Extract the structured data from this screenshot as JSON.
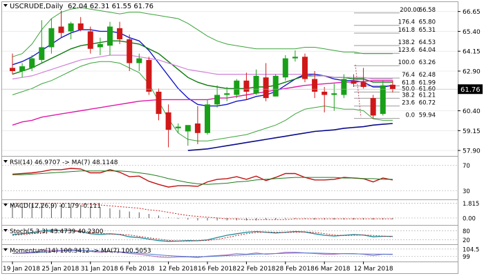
{
  "chart_data": {
    "type": "candlestick",
    "symbol_label": "USCRUDE,Daily",
    "ohlc_label": "62.04 62.31 61.55 61.76",
    "last_price": 61.76,
    "last_price_label": "61.76",
    "ylim": [
      57.6,
      67.2
    ],
    "y_ticks": [
      {
        "v": 66.65,
        "label": "66.65"
      },
      {
        "v": 65.4,
        "label": "65.40"
      },
      {
        "v": 64.15,
        "label": "64.15"
      },
      {
        "v": 62.9,
        "label": "62.90"
      },
      {
        "v": 60.4,
        "label": "60.40"
      },
      {
        "v": 59.15,
        "label": "59.15"
      },
      {
        "v": 57.9,
        "label": "57.90"
      }
    ],
    "x_labels": [
      {
        "i": 0,
        "label": "19 Jan 2018"
      },
      {
        "i": 4,
        "label": "25 Jan 2018"
      },
      {
        "i": 8,
        "label": "31 Jan 2018"
      },
      {
        "i": 12,
        "label": "6 Feb 2018"
      },
      {
        "i": 16,
        "label": "12 Feb 2018"
      },
      {
        "i": 20,
        "label": "16 Feb 2018"
      },
      {
        "i": 24,
        "label": "22 Feb 2018"
      },
      {
        "i": 28,
        "label": "28 Feb 2018"
      },
      {
        "i": 32,
        "label": "6 Mar 2018"
      },
      {
        "i": 36,
        "label": "12 Mar 2018"
      }
    ],
    "candles": [
      {
        "o": 63.1,
        "h": 64.0,
        "l": 62.7,
        "c": 62.9
      },
      {
        "o": 62.9,
        "h": 63.4,
        "l": 62.5,
        "c": 63.2
      },
      {
        "o": 63.1,
        "h": 63.9,
        "l": 62.9,
        "c": 63.7
      },
      {
        "o": 63.6,
        "h": 66.1,
        "l": 63.4,
        "c": 64.4
      },
      {
        "o": 64.4,
        "h": 66.2,
        "l": 64.0,
        "c": 65.6
      },
      {
        "o": 65.7,
        "h": 66.7,
        "l": 65.0,
        "c": 65.3
      },
      {
        "o": 65.4,
        "h": 66.0,
        "l": 64.9,
        "c": 65.9
      },
      {
        "o": 65.9,
        "h": 66.3,
        "l": 65.4,
        "c": 65.5
      },
      {
        "o": 65.4,
        "h": 65.7,
        "l": 64.0,
        "c": 64.3
      },
      {
        "o": 64.4,
        "h": 65.0,
        "l": 63.9,
        "c": 64.6
      },
      {
        "o": 64.5,
        "h": 66.0,
        "l": 63.9,
        "c": 65.7
      },
      {
        "o": 65.6,
        "h": 66.0,
        "l": 64.6,
        "c": 64.9
      },
      {
        "o": 64.9,
        "h": 65.2,
        "l": 62.9,
        "c": 63.4
      },
      {
        "o": 63.4,
        "h": 64.0,
        "l": 62.9,
        "c": 63.7
      },
      {
        "o": 63.6,
        "h": 63.8,
        "l": 61.4,
        "c": 61.6
      },
      {
        "o": 61.6,
        "h": 61.8,
        "l": 59.8,
        "c": 60.2
      },
      {
        "o": 60.3,
        "h": 60.8,
        "l": 58.1,
        "c": 59.2
      },
      {
        "o": 59.3,
        "h": 59.6,
        "l": 59.0,
        "c": 59.4
      },
      {
        "o": 59.1,
        "h": 59.5,
        "l": 58.2,
        "c": 59.5
      },
      {
        "o": 59.6,
        "h": 60.7,
        "l": 58.3,
        "c": 59.0
      },
      {
        "o": 59.0,
        "h": 61.1,
        "l": 58.9,
        "c": 60.8
      },
      {
        "o": 60.8,
        "h": 62.0,
        "l": 60.6,
        "c": 61.4
      },
      {
        "o": 61.4,
        "h": 61.9,
        "l": 61.0,
        "c": 61.5
      },
      {
        "o": 61.4,
        "h": 62.4,
        "l": 61.2,
        "c": 62.3
      },
      {
        "o": 62.3,
        "h": 62.8,
        "l": 61.1,
        "c": 61.6
      },
      {
        "o": 61.5,
        "h": 63.0,
        "l": 61.4,
        "c": 62.6
      },
      {
        "o": 62.5,
        "h": 63.4,
        "l": 61.0,
        "c": 61.2
      },
      {
        "o": 61.3,
        "h": 62.7,
        "l": 61.3,
        "c": 62.6
      },
      {
        "o": 62.5,
        "h": 63.9,
        "l": 62.3,
        "c": 63.7
      },
      {
        "o": 63.7,
        "h": 64.2,
        "l": 63.5,
        "c": 63.8
      },
      {
        "o": 63.8,
        "h": 64.0,
        "l": 62.2,
        "c": 62.4
      },
      {
        "o": 62.4,
        "h": 62.9,
        "l": 61.2,
        "c": 61.6
      },
      {
        "o": 61.6,
        "h": 61.9,
        "l": 60.3,
        "c": 61.4
      },
      {
        "o": 61.4,
        "h": 62.1,
        "l": 60.4,
        "c": 61.5
      },
      {
        "o": 61.4,
        "h": 62.7,
        "l": 61.2,
        "c": 62.4
      },
      {
        "o": 62.3,
        "h": 62.7,
        "l": 61.9,
        "c": 62.1
      },
      {
        "o": 62.2,
        "h": 63.1,
        "l": 61.8,
        "c": 61.9
      },
      {
        "o": 61.2,
        "h": 61.4,
        "l": 59.9,
        "c": 60.1
      },
      {
        "o": 60.2,
        "h": 62.3,
        "l": 60.1,
        "c": 62.0
      },
      {
        "o": 62.04,
        "h": 62.31,
        "l": 61.55,
        "c": 61.76
      }
    ],
    "fibonacci": [
      {
        "ratio": "200.00",
        "value": "66.58",
        "v": 66.58
      },
      {
        "ratio": "176.4",
        "value": "65.80",
        "v": 65.8
      },
      {
        "ratio": "161.8",
        "value": "65.31",
        "v": 65.31
      },
      {
        "ratio": "138.2",
        "value": "64.53",
        "v": 64.53
      },
      {
        "ratio": "123.6",
        "value": "64.04",
        "v": 64.04
      },
      {
        "ratio": "100.0",
        "value": "63.26",
        "v": 63.26
      },
      {
        "ratio": "76.4",
        "value": "62.48",
        "v": 62.48
      },
      {
        "ratio": "61.8",
        "value": "61.99",
        "v": 61.99
      },
      {
        "ratio": "50.0",
        "value": "61.60",
        "v": 61.6
      },
      {
        "ratio": "38.2",
        "value": "61.21",
        "v": 61.21
      },
      {
        "ratio": "23.6",
        "value": "60.72",
        "v": 60.72
      },
      {
        "ratio": "0.0",
        "value": "59.94",
        "v": 59.94
      }
    ],
    "overlays": [
      {
        "color": "#1414c8",
        "width": 1.4,
        "values": [
          63.3,
          63.5,
          63.8,
          64.2,
          64.6,
          65.0,
          65.3,
          65.5,
          65.5,
          65.4,
          65.4,
          65.3,
          65.0,
          64.8,
          64.2,
          63.4,
          62.6,
          61.8,
          61.2,
          60.8,
          60.7,
          60.7,
          60.8,
          61.0,
          61.1,
          61.3,
          61.4,
          61.6,
          62.0,
          62.4,
          62.7,
          62.7,
          62.6,
          62.4,
          62.3,
          62.3,
          62.2,
          61.9,
          61.9,
          62.0
        ]
      },
      {
        "color": "#0a7a0a",
        "width": 1.4,
        "values": [
          62.7,
          62.9,
          63.1,
          63.4,
          63.7,
          64.0,
          64.3,
          64.5,
          64.6,
          64.7,
          64.8,
          64.8,
          64.7,
          64.6,
          64.3,
          64.0,
          63.5,
          63.0,
          62.5,
          62.2,
          62.0,
          61.9,
          61.8,
          61.8,
          61.8,
          61.9,
          61.9,
          62.0,
          62.2,
          62.4,
          62.6,
          62.6,
          62.6,
          62.5,
          62.5,
          62.4,
          62.4,
          62.2,
          62.2,
          62.2
        ]
      },
      {
        "color": "#d080d8",
        "width": 1.2,
        "values": [
          62.4,
          62.5,
          62.6,
          62.8,
          63.0,
          63.2,
          63.4,
          63.6,
          63.7,
          63.8,
          63.9,
          63.9,
          63.9,
          63.8,
          63.7,
          63.6,
          63.4,
          63.2,
          63.0,
          62.9,
          62.8,
          62.7,
          62.7,
          62.7,
          62.7,
          62.7,
          62.7,
          62.7,
          62.7,
          62.7,
          62.7,
          62.6,
          62.6,
          62.5,
          62.5,
          62.5,
          62.5,
          62.4,
          62.4,
          62.4
        ]
      },
      {
        "color": "#e018a8",
        "width": 1.4,
        "values": [
          59.5,
          59.7,
          59.8,
          60.0,
          60.1,
          60.2,
          60.3,
          60.4,
          60.5,
          60.6,
          60.7,
          60.8,
          60.9,
          61.0,
          61.05,
          61.1,
          61.1,
          61.1,
          61.1,
          61.1,
          61.1,
          61.2,
          61.2,
          61.3,
          61.4,
          61.5,
          61.6,
          61.7,
          61.8,
          61.9,
          62.0,
          62.05,
          62.1,
          62.15,
          62.2,
          62.2,
          62.25,
          62.3,
          62.3,
          62.3
        ]
      },
      {
        "color": "#0a0a8c",
        "width": 1.6,
        "values": [
          null,
          null,
          null,
          null,
          null,
          null,
          null,
          null,
          null,
          null,
          null,
          null,
          null,
          null,
          null,
          null,
          null,
          null,
          57.9,
          57.95,
          58.0,
          58.1,
          58.2,
          58.3,
          58.4,
          58.5,
          58.6,
          58.7,
          58.8,
          58.9,
          59.0,
          59.1,
          59.15,
          59.2,
          59.3,
          59.35,
          59.4,
          59.5,
          59.55,
          59.6
        ]
      },
      {
        "color": "#3aa33a",
        "width": 1.0,
        "values": [
          63.8,
          64.0,
          64.6,
          65.5,
          66.2,
          66.6,
          66.8,
          66.9,
          66.8,
          66.7,
          66.6,
          66.5,
          66.6,
          66.6,
          66.5,
          66.4,
          66.3,
          66.2,
          65.9,
          65.5,
          65.1,
          64.8,
          64.6,
          64.5,
          64.4,
          64.3,
          64.3,
          64.3,
          64.3,
          64.3,
          64.4,
          64.4,
          64.3,
          64.2,
          64.1,
          64.1,
          64.0,
          64.0,
          64.0,
          64.0
        ]
      },
      {
        "color": "#3aa33a",
        "width": 1.0,
        "values": [
          61.4,
          61.6,
          61.8,
          62.1,
          62.3,
          62.6,
          62.9,
          63.2,
          63.4,
          63.5,
          63.5,
          63.4,
          63.1,
          62.8,
          62.1,
          61.0,
          59.9,
          59.0,
          58.6,
          58.5,
          58.5,
          58.6,
          58.7,
          58.8,
          58.9,
          59.1,
          59.3,
          59.5,
          59.8,
          60.2,
          60.5,
          60.6,
          60.7,
          60.6,
          60.5,
          60.5,
          60.4,
          59.9,
          59.8,
          59.8
        ]
      }
    ],
    "rsi": {
      "label": "RSI(14) 46.9707 -> MA(7) 48.1148",
      "ylim": [
        20,
        80
      ],
      "ticks": [
        {
          "v": 70,
          "label": "70"
        },
        {
          "v": 30,
          "label": "30"
        }
      ],
      "rsi": [
        56,
        57,
        58,
        60,
        63,
        63,
        65,
        64,
        58,
        58,
        63,
        59,
        52,
        53,
        45,
        40,
        36,
        38,
        38,
        37,
        44,
        48,
        49,
        52,
        48,
        53,
        46,
        51,
        57,
        57,
        51,
        47,
        47,
        48,
        51,
        50,
        49,
        44,
        50,
        47
      ],
      "ma": [
        55,
        55,
        56,
        57,
        58,
        59,
        60,
        61,
        61,
        61,
        61,
        61,
        60,
        58,
        56,
        53,
        49,
        46,
        43,
        41,
        40,
        41,
        42,
        44,
        45,
        47,
        48,
        49,
        50,
        51,
        51,
        51,
        51,
        51,
        50,
        50,
        49,
        49,
        48,
        48
      ]
    },
    "macd": {
      "label": "MACD(12,26,9) -0.179 -0.111",
      "ticks": [
        {
          "v": 1.815,
          "label": "1.815"
        },
        {
          "v": 0.0,
          "label": "0.00"
        }
      ],
      "ylim": [
        -0.6,
        1.95
      ],
      "hist": [
        1.7,
        1.7,
        1.7,
        1.8,
        1.8,
        1.7,
        1.7,
        1.6,
        1.4,
        1.3,
        1.2,
        1.0,
        0.8,
        0.7,
        0.5,
        0.3,
        0.1,
        -0.1,
        -0.2,
        -0.3,
        -0.3,
        -0.3,
        -0.3,
        -0.3,
        -0.3,
        -0.3,
        -0.2,
        -0.2,
        -0.1,
        -0.1,
        -0.1,
        -0.2,
        -0.2,
        -0.2,
        -0.2,
        -0.2,
        -0.2,
        -0.2,
        -0.2,
        -0.18
      ],
      "signal": [
        1.8,
        1.8,
        1.8,
        1.8,
        1.8,
        1.8,
        1.8,
        1.7,
        1.7,
        1.6,
        1.5,
        1.4,
        1.3,
        1.2,
        1.0,
        0.9,
        0.7,
        0.5,
        0.3,
        0.2,
        0.1,
        0.0,
        -0.1,
        -0.1,
        -0.2,
        -0.2,
        -0.2,
        -0.2,
        -0.2,
        -0.1,
        -0.1,
        -0.1,
        -0.1,
        -0.1,
        -0.1,
        -0.1,
        -0.1,
        -0.1,
        -0.1,
        -0.11
      ]
    },
    "stoch": {
      "label": "Stoch(5,3,3) 43.4739 40.2300",
      "ylim": [
        0,
        100
      ],
      "ticks": [
        {
          "v": 80,
          "label": "80"
        },
        {
          "v": 20,
          "label": "20"
        }
      ],
      "k": [
        55,
        60,
        68,
        78,
        85,
        82,
        80,
        75,
        60,
        55,
        60,
        55,
        40,
        35,
        25,
        15,
        10,
        12,
        15,
        14,
        20,
        35,
        50,
        60,
        70,
        75,
        70,
        65,
        70,
        75,
        72,
        60,
        50,
        45,
        50,
        55,
        52,
        40,
        43,
        43
      ],
      "d": [
        50,
        55,
        60,
        68,
        77,
        82,
        82,
        79,
        72,
        63,
        58,
        57,
        52,
        43,
        33,
        25,
        17,
        12,
        12,
        14,
        16,
        23,
        35,
        48,
        60,
        68,
        72,
        70,
        68,
        70,
        72,
        69,
        61,
        52,
        48,
        50,
        52,
        49,
        45,
        40
      ]
    },
    "momentum": {
      "label": "Momentum(14) 100.3412 -> MA(7) 100.5053",
      "ylim": [
        96,
        106
      ],
      "ticks": [
        {
          "v": 104.5,
          "label": "104.5"
        },
        {
          "v": 99,
          "label": "99"
        }
      ],
      "mom": [
        101,
        101.5,
        102,
        103,
        103.5,
        103.5,
        104,
        103.5,
        102.5,
        102,
        102.5,
        102,
        101,
        100.5,
        99.5,
        98.5,
        98,
        98.5,
        98.5,
        98,
        99,
        99.5,
        100,
        101,
        100.5,
        101.5,
        100.5,
        101,
        102,
        102,
        101.5,
        101,
        100.5,
        100.5,
        101,
        101,
        100.5,
        99.5,
        100.5,
        100.3
      ],
      "ma": [
        101,
        101.2,
        101.5,
        102,
        102.5,
        103,
        103.2,
        103.3,
        103.1,
        102.8,
        102.6,
        102.3,
        101.8,
        101.3,
        100.7,
        100,
        99.4,
        99,
        98.7,
        98.6,
        98.7,
        99,
        99.4,
        99.8,
        100.2,
        100.6,
        100.8,
        101,
        101.2,
        101.4,
        101.5,
        101.4,
        101.2,
        101,
        100.9,
        100.8,
        100.7,
        100.6,
        100.5,
        100.5
      ]
    }
  }
}
